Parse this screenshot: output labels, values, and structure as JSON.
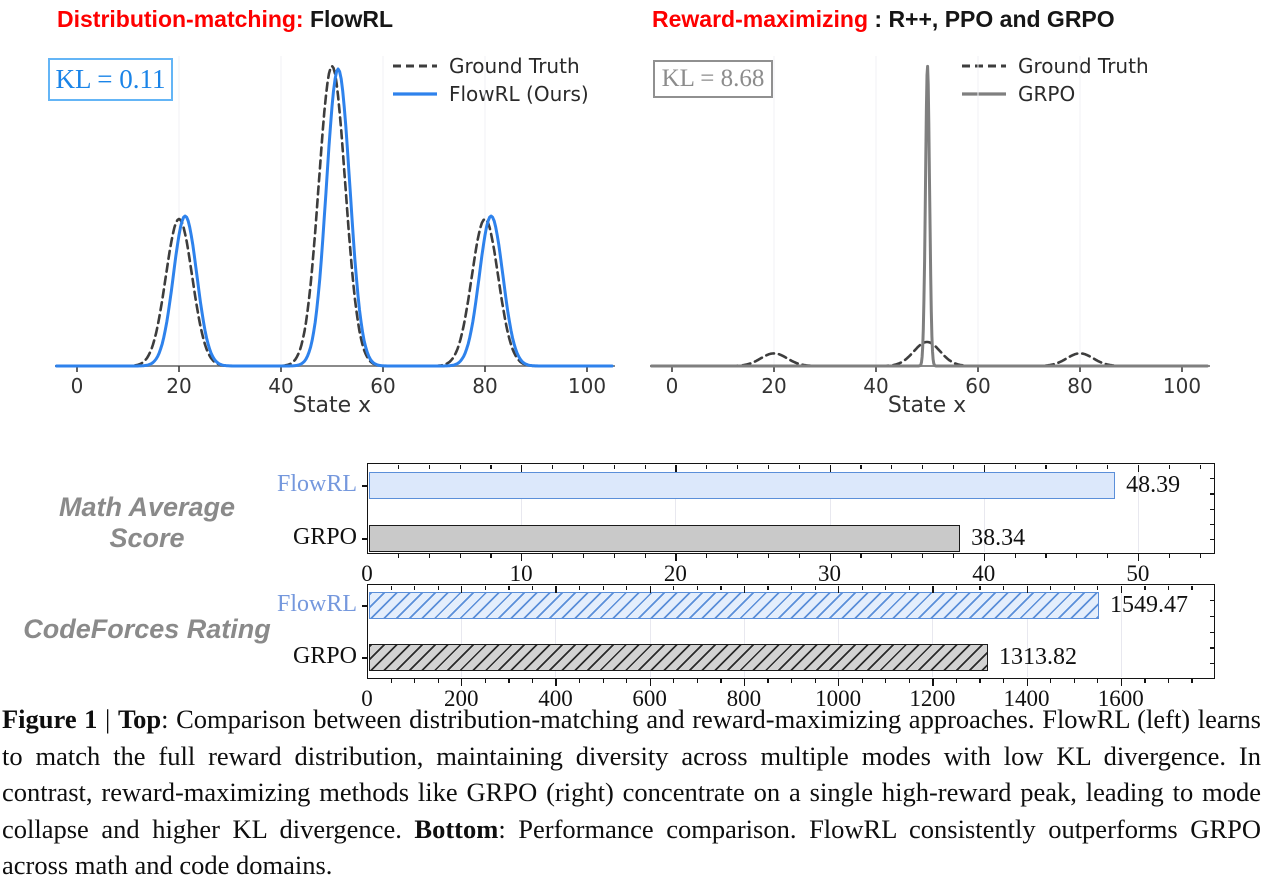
{
  "panels": {
    "left": {
      "title_red": "Distribution-matching:",
      "title_black": " FlowRL",
      "kl": "KL = 0.11",
      "legend": [
        {
          "label": "Ground Truth"
        },
        {
          "label": "FlowRL (Ours)"
        }
      ],
      "xlabel": "State x"
    },
    "right": {
      "title_red": "Reward-maximizing",
      "title_black": " : R++, PPO and GRPO",
      "kl": "KL = 8.68",
      "legend": [
        {
          "label": "Ground Truth"
        },
        {
          "label": "GRPO"
        }
      ],
      "xlabel": "State x"
    }
  },
  "colors": {
    "accent_red": "#fe0000",
    "flowrl_blue": "#2e82ec",
    "kl_blue_text": "#1a84e8",
    "kl_blue_border": "#64b5f6",
    "kl_gray": "#8c8c8c",
    "grpo_gray": "#7f7f7f",
    "ground_truth_dash": "#3d3d3d",
    "row_label_gray": "#8a8a8a",
    "flowrl_bar_fill": "#dce8fb",
    "flowrl_bar_edge": "#5b8fd9",
    "flowrl_label_blue": "#7598dd",
    "grpo_bar_fill": "#c9c9c9",
    "bar_edge_black": "#1a1a1a"
  },
  "chart_data": [
    {
      "id": "flowrl-distribution",
      "type": "line",
      "title": "Distribution-matching: FlowRL",
      "xlabel": "State x",
      "xlim": [
        -4,
        105
      ],
      "xticks": [
        0,
        20,
        40,
        60,
        80,
        100
      ],
      "grid_ticks": [
        20,
        40,
        60,
        80
      ],
      "sample_step": 0.3,
      "kl_divergence": 0.11,
      "ylim_relative": [
        0,
        1.05
      ],
      "series": [
        {
          "name": "Ground Truth",
          "style": "dashed",
          "color": "#3d3d3d",
          "peaks": [
            {
              "mu": 20,
              "height": 0.49,
              "sigma": 2.6
            },
            {
              "mu": 50,
              "height": 1.0,
              "sigma": 2.6
            },
            {
              "mu": 80,
              "height": 0.49,
              "sigma": 2.6
            }
          ]
        },
        {
          "name": "FlowRL (Ours)",
          "style": "solid",
          "color": "#2e82ec",
          "peaks": [
            {
              "mu": 21.2,
              "height": 0.5,
              "sigma": 2.3
            },
            {
              "mu": 51.2,
              "height": 0.99,
              "sigma": 2.3
            },
            {
              "mu": 81.2,
              "height": 0.5,
              "sigma": 2.3
            }
          ]
        }
      ]
    },
    {
      "id": "grpo-distribution",
      "type": "line",
      "title": "Reward-maximizing : R++, PPO and GRPO",
      "xlabel": "State x",
      "xlim": [
        -4,
        105
      ],
      "xticks": [
        0,
        20,
        40,
        60,
        80,
        100
      ],
      "grid_ticks": [
        20,
        40,
        60,
        80
      ],
      "sample_step": 0.12,
      "kl_divergence": 8.68,
      "ylim_relative": [
        0,
        1.05
      ],
      "series": [
        {
          "name": "Ground Truth",
          "style": "dashed",
          "color": "#3d3d3d",
          "peaks": [
            {
              "mu": 20,
              "height": 0.042,
              "sigma": 2.6
            },
            {
              "mu": 50,
              "height": 0.08,
              "sigma": 2.6
            },
            {
              "mu": 80,
              "height": 0.042,
              "sigma": 2.6
            }
          ]
        },
        {
          "name": "GRPO",
          "style": "solid",
          "color": "#7f7f7f",
          "peaks": [
            {
              "mu": 50.1,
              "height": 1.0,
              "sigma": 0.4
            }
          ]
        }
      ]
    },
    {
      "id": "math-average-score",
      "type": "bar",
      "orientation": "horizontal",
      "row_label": "Math Average Score",
      "xmax": 55,
      "xticks": [
        0,
        10,
        20,
        30,
        40,
        50
      ],
      "minor_step": 2,
      "bars": [
        {
          "category": "FlowRL",
          "value": 48.39,
          "value_label": "48.39",
          "category_color": "#7598dd",
          "fill": "#dce8fb",
          "edge": "#5b8fd9",
          "hatch": false
        },
        {
          "category": "GRPO",
          "value": 38.34,
          "value_label": "38.34",
          "category_color": "#111111",
          "fill": "#c9c9c9",
          "edge": "#1a1a1a",
          "hatch": false
        }
      ]
    },
    {
      "id": "codeforces-rating",
      "type": "bar",
      "orientation": "horizontal",
      "row_label": "CodeForces Rating",
      "xmax": 1800,
      "xticks": [
        0,
        200,
        400,
        600,
        800,
        1000,
        1200,
        1400,
        1600
      ],
      "minor_step": 50,
      "bars": [
        {
          "category": "FlowRL",
          "value": 1549.47,
          "value_label": "1549.47",
          "category_color": "#7598dd",
          "fill": "#e4eefc",
          "edge": "#5b8fd9",
          "hatch": true,
          "hatch_color": "#5b8fd9"
        },
        {
          "category": "GRPO",
          "value": 1313.82,
          "value_label": "1313.82",
          "category_color": "#111111",
          "fill": "#d2d2d2",
          "edge": "#1a1a1a",
          "hatch": true,
          "hatch_color": "#2a2a2a"
        }
      ]
    }
  ],
  "caption": {
    "segments": [
      {
        "text": "Figure 1",
        "bold": true
      },
      {
        "text": " | ",
        "bold": false
      },
      {
        "text": "Top",
        "bold": true
      },
      {
        "text": ": Comparison between distribution-matching and reward-maximizing approaches. FlowRL (left) learns to match the full reward distribution, maintaining diversity across multiple modes with low KL divergence. In contrast, reward-maximizing methods like GRPO (right) concentrate on a single high-reward peak, leading to mode collapse and higher KL divergence. ",
        "bold": false
      },
      {
        "text": "Bottom",
        "bold": true
      },
      {
        "text": ": Performance comparison. FlowRL consistently outperforms GRPO across math and code domains.",
        "bold": false
      }
    ]
  }
}
